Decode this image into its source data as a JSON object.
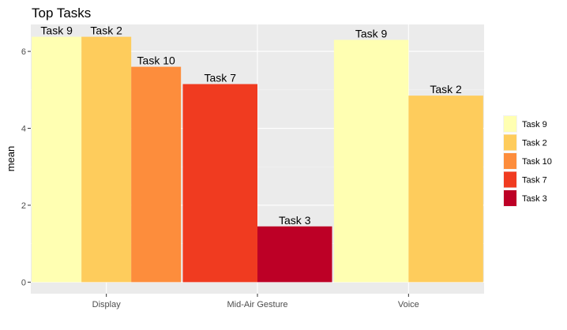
{
  "chart_data": {
    "type": "bar",
    "title": "Top Tasks",
    "xlabel": "",
    "ylabel": "mean",
    "ylim": [
      -0.3,
      6.7
    ],
    "yticks": [
      0,
      2,
      4,
      6
    ],
    "grid": true,
    "legend_position": "right",
    "categories": [
      "Display",
      "Mid-Air Gesture",
      "Voice"
    ],
    "legend": [
      {
        "name": "Task 9",
        "color": "#FFFFB2"
      },
      {
        "name": "Task 2",
        "color": "#FECC5C"
      },
      {
        "name": "Task 10",
        "color": "#FD8D3C"
      },
      {
        "name": "Task 7",
        "color": "#F03B20"
      },
      {
        "name": "Task 3",
        "color": "#BD0026"
      }
    ],
    "groups": [
      {
        "category": "Display",
        "bars": [
          {
            "task": "Task 9",
            "value": 6.38
          },
          {
            "task": "Task 2",
            "value": 6.38
          },
          {
            "task": "Task 10",
            "value": 5.6
          }
        ]
      },
      {
        "category": "Mid-Air Gesture",
        "bars": [
          {
            "task": "Task 7",
            "value": 5.15
          },
          {
            "task": "Task 3",
            "value": 1.45
          }
        ]
      },
      {
        "category": "Voice",
        "bars": [
          {
            "task": "Task 9",
            "value": 6.3
          },
          {
            "task": "Task 2",
            "value": 4.85
          }
        ]
      }
    ]
  }
}
